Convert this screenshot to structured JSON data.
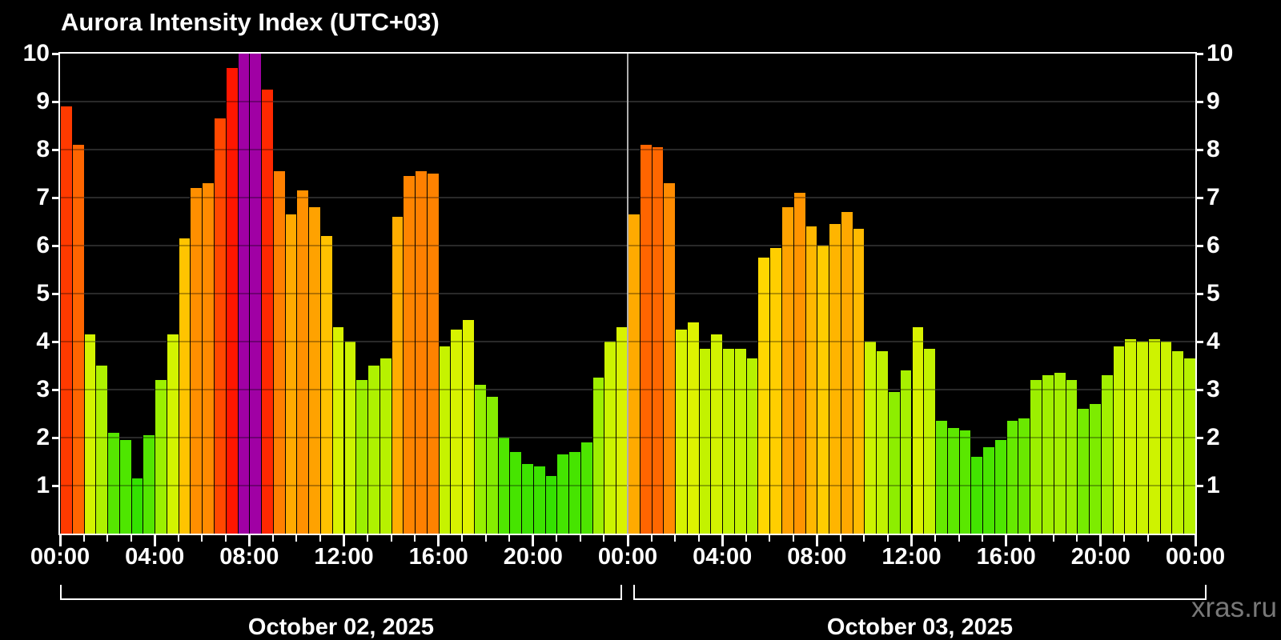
{
  "title": "Aurora Intensity Index (UTC+03)",
  "watermark": "xras.ru",
  "y_axis": {
    "tick_labels": [
      "10",
      "9",
      "8",
      "7",
      "6",
      "5",
      "4",
      "3",
      "2",
      "1"
    ]
  },
  "x_axis": {
    "tick_labels": [
      "00:00",
      "04:00",
      "08:00",
      "12:00",
      "16:00",
      "20:00",
      "00:00",
      "04:00",
      "08:00",
      "12:00",
      "16:00",
      "20:00",
      "00:00"
    ]
  },
  "days": [
    {
      "date_label": "October 02, 2025"
    },
    {
      "date_label": "October 03, 2025"
    }
  ],
  "colors": {
    "background": "#000000",
    "frame": "#ffffff",
    "gridline": "#3c3c3c",
    "day_divider": "#b0b0b0",
    "text": "#ffffff",
    "watermark_text": "#787878",
    "max_value_color": "#a000a4",
    "colormap_stops": [
      [
        1.0,
        "#2ee000"
      ],
      [
        2.0,
        "#50e600"
      ],
      [
        3.0,
        "#90ee00"
      ],
      [
        4.0,
        "#ccf300"
      ],
      [
        5.0,
        "#f8f000"
      ],
      [
        5.5,
        "#ffe200"
      ],
      [
        6.0,
        "#ffcc00"
      ],
      [
        6.5,
        "#ffb200"
      ],
      [
        7.0,
        "#ff9800"
      ],
      [
        7.5,
        "#ff8200"
      ],
      [
        8.0,
        "#ff6a00"
      ],
      [
        8.5,
        "#ff5000"
      ],
      [
        9.0,
        "#ff3400"
      ],
      [
        9.5,
        "#ff1c00"
      ],
      [
        10.0,
        "#ff0e00"
      ]
    ]
  },
  "chart_data": {
    "type": "bar",
    "title": "Aurora Intensity Index (UTC+03)",
    "xlabel": "",
    "ylabel": "",
    "ylim": [
      0,
      10
    ],
    "yticks": [
      1,
      2,
      3,
      4,
      5,
      6,
      7,
      8,
      9,
      10
    ],
    "grid": true,
    "interval_minutes": 30,
    "bars_per_day": 48,
    "x_tick_labels": [
      "00:00",
      "04:00",
      "08:00",
      "12:00",
      "16:00",
      "20:00",
      "00:00",
      "04:00",
      "08:00",
      "12:00",
      "16:00",
      "20:00",
      "00:00"
    ],
    "series": [
      {
        "name": "October 02, 2025",
        "values": [
          8.9,
          8.1,
          4.15,
          3.5,
          2.1,
          1.95,
          1.15,
          2.05,
          3.2,
          4.15,
          6.15,
          7.2,
          7.3,
          8.65,
          9.7,
          10,
          10,
          9.25,
          7.55,
          6.65,
          7.15,
          6.8,
          6.2,
          4.3,
          4.0,
          3.2,
          3.5,
          3.65,
          6.6,
          7.45,
          7.55,
          7.5,
          3.9,
          4.25,
          4.45,
          3.1,
          2.85,
          2.0,
          1.7,
          1.45,
          1.4,
          1.2,
          1.65,
          1.7,
          1.9,
          3.25,
          4.0,
          4.3
        ]
      },
      {
        "name": "October 03, 2025",
        "values": [
          6.65,
          8.1,
          8.05,
          7.3,
          4.25,
          4.4,
          3.85,
          4.15,
          3.85,
          3.85,
          3.65,
          5.75,
          5.95,
          6.8,
          7.1,
          6.4,
          6.0,
          6.45,
          6.7,
          6.35,
          4.0,
          3.8,
          2.95,
          3.4,
          4.3,
          3.85,
          2.35,
          2.2,
          2.15,
          1.6,
          1.8,
          1.95,
          2.35,
          2.4,
          3.2,
          3.3,
          3.35,
          3.2,
          2.6,
          2.7,
          3.3,
          3.9,
          4.05,
          4.0,
          4.05,
          4.0,
          3.8,
          3.65
        ]
      }
    ]
  }
}
